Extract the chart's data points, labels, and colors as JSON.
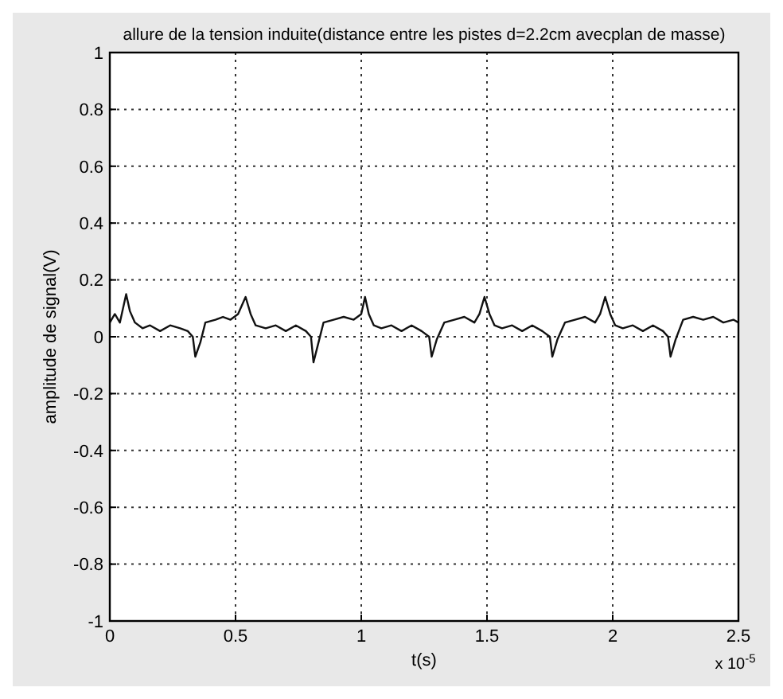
{
  "chart_data": {
    "type": "line",
    "title": "allure de la tension induite(distance entre les pistes d=2.2cm avecplan de masse)",
    "xlabel": "t(s)",
    "ylabel": "amplitude de signal(V)",
    "annotations": [
      "x 10$^{-5}$"
    ],
    "xlim": [
      0,
      2.5
    ],
    "ylim": [
      -1,
      1
    ],
    "xticks": [
      0,
      0.5,
      1,
      1.5,
      2,
      2.5
    ],
    "yticks": [
      -1,
      -0.8,
      -0.6,
      -0.4,
      -0.2,
      0,
      0.2,
      0.4,
      0.6,
      0.8,
      1
    ],
    "grid": true,
    "line_style": "solid",
    "marker": "none",
    "series": [
      {
        "color": "#111111",
        "x": [
          0,
          0.02,
          0.04,
          0.065,
          0.08,
          0.1,
          0.13,
          0.16,
          0.2,
          0.24,
          0.28,
          0.31,
          0.33,
          0.34,
          0.36,
          0.38,
          0.42,
          0.45,
          0.48,
          0.51,
          0.54,
          0.56,
          0.58,
          0.62,
          0.66,
          0.7,
          0.74,
          0.78,
          0.8,
          0.81,
          0.83,
          0.85,
          0.89,
          0.93,
          0.97,
          1.0,
          1.015,
          1.03,
          1.05,
          1.08,
          1.12,
          1.16,
          1.2,
          1.24,
          1.27,
          1.28,
          1.3,
          1.33,
          1.37,
          1.41,
          1.45,
          1.47,
          1.49,
          1.51,
          1.53,
          1.56,
          1.6,
          1.64,
          1.68,
          1.72,
          1.75,
          1.76,
          1.78,
          1.81,
          1.85,
          1.89,
          1.93,
          1.95,
          1.97,
          1.99,
          2.01,
          2.04,
          2.08,
          2.12,
          2.16,
          2.2,
          2.22,
          2.23,
          2.25,
          2.28,
          2.32,
          2.36,
          2.4,
          2.44,
          2.48,
          2.5
        ],
        "values": [
          0.05,
          0.08,
          0.05,
          0.15,
          0.09,
          0.05,
          0.03,
          0.04,
          0.02,
          0.04,
          0.03,
          0.02,
          0.0,
          -0.07,
          -0.02,
          0.05,
          0.06,
          0.07,
          0.06,
          0.08,
          0.14,
          0.08,
          0.04,
          0.03,
          0.04,
          0.02,
          0.04,
          0.02,
          0.0,
          -0.09,
          -0.02,
          0.05,
          0.06,
          0.07,
          0.06,
          0.08,
          0.14,
          0.08,
          0.04,
          0.03,
          0.04,
          0.02,
          0.04,
          0.02,
          0.0,
          -0.07,
          -0.01,
          0.05,
          0.06,
          0.07,
          0.05,
          0.08,
          0.14,
          0.08,
          0.04,
          0.03,
          0.04,
          0.02,
          0.04,
          0.02,
          0.0,
          -0.07,
          -0.01,
          0.05,
          0.06,
          0.07,
          0.05,
          0.08,
          0.14,
          0.08,
          0.04,
          0.03,
          0.04,
          0.02,
          0.04,
          0.02,
          0.0,
          -0.07,
          -0.01,
          0.06,
          0.07,
          0.06,
          0.07,
          0.05,
          0.06,
          0.05
        ]
      }
    ]
  }
}
